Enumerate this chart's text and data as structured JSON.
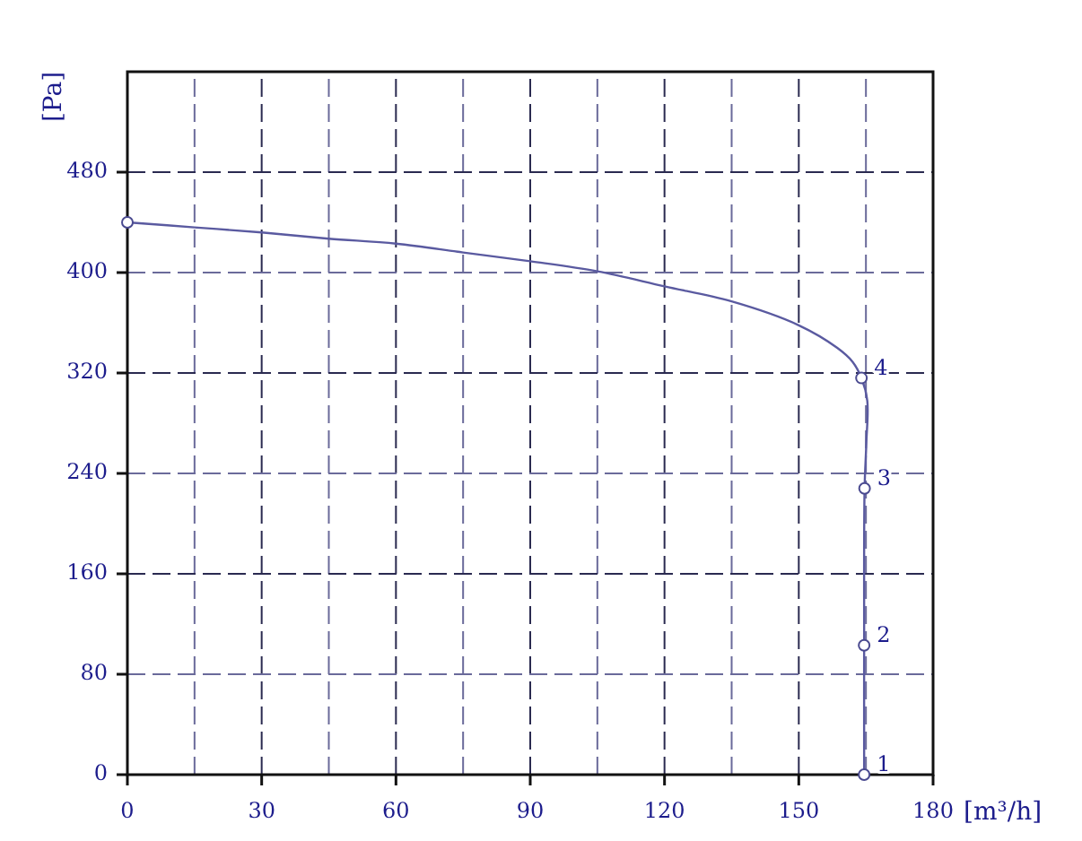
{
  "chart_data": {
    "type": "line",
    "xlabel": "[m³/h]",
    "ylabel": "[Pa]",
    "xlim": [
      0,
      180
    ],
    "ylim": [
      0,
      560
    ],
    "xticks": [
      0,
      {
        "value": 15,
        "label": null
      },
      30,
      {
        "value": 45,
        "label": null
      },
      60,
      {
        "value": 75,
        "label": null
      },
      90,
      {
        "value": 105,
        "label": null
      },
      120,
      {
        "value": 135,
        "label": null
      },
      150,
      {
        "value": 165,
        "label": null
      },
      180
    ],
    "yticks": [
      0,
      80,
      160,
      240,
      320,
      400,
      480
    ],
    "grid": true,
    "series": [
      {
        "color": "#5a5aa0",
        "x": [
          0,
          15,
          30,
          45,
          60,
          75,
          90,
          105,
          120,
          135,
          150,
          158.6,
          162,
          164,
          165.3,
          165.1,
          164.7,
          164.6,
          164.6
        ],
        "values": [
          440,
          436,
          432,
          427,
          423,
          416,
          409,
          401,
          389,
          377,
          358,
          340,
          329,
          316,
          298,
          265,
          228,
          103,
          0
        ]
      },
      {
        "type": "scatter",
        "marker": "circle",
        "color": "#4a4a90",
        "x": [
          0,
          164.6,
          164.6,
          164.7,
          164
        ],
        "values": [
          440,
          0,
          103,
          228,
          316
        ]
      }
    ],
    "annotations": [
      {
        "text": "1",
        "x": 164.6,
        "y": 0
      },
      {
        "text": "2",
        "x": 164.6,
        "y": 103
      },
      {
        "text": "3",
        "x": 164.7,
        "y": 228
      },
      {
        "text": "4",
        "x": 164,
        "y": 316
      }
    ]
  }
}
